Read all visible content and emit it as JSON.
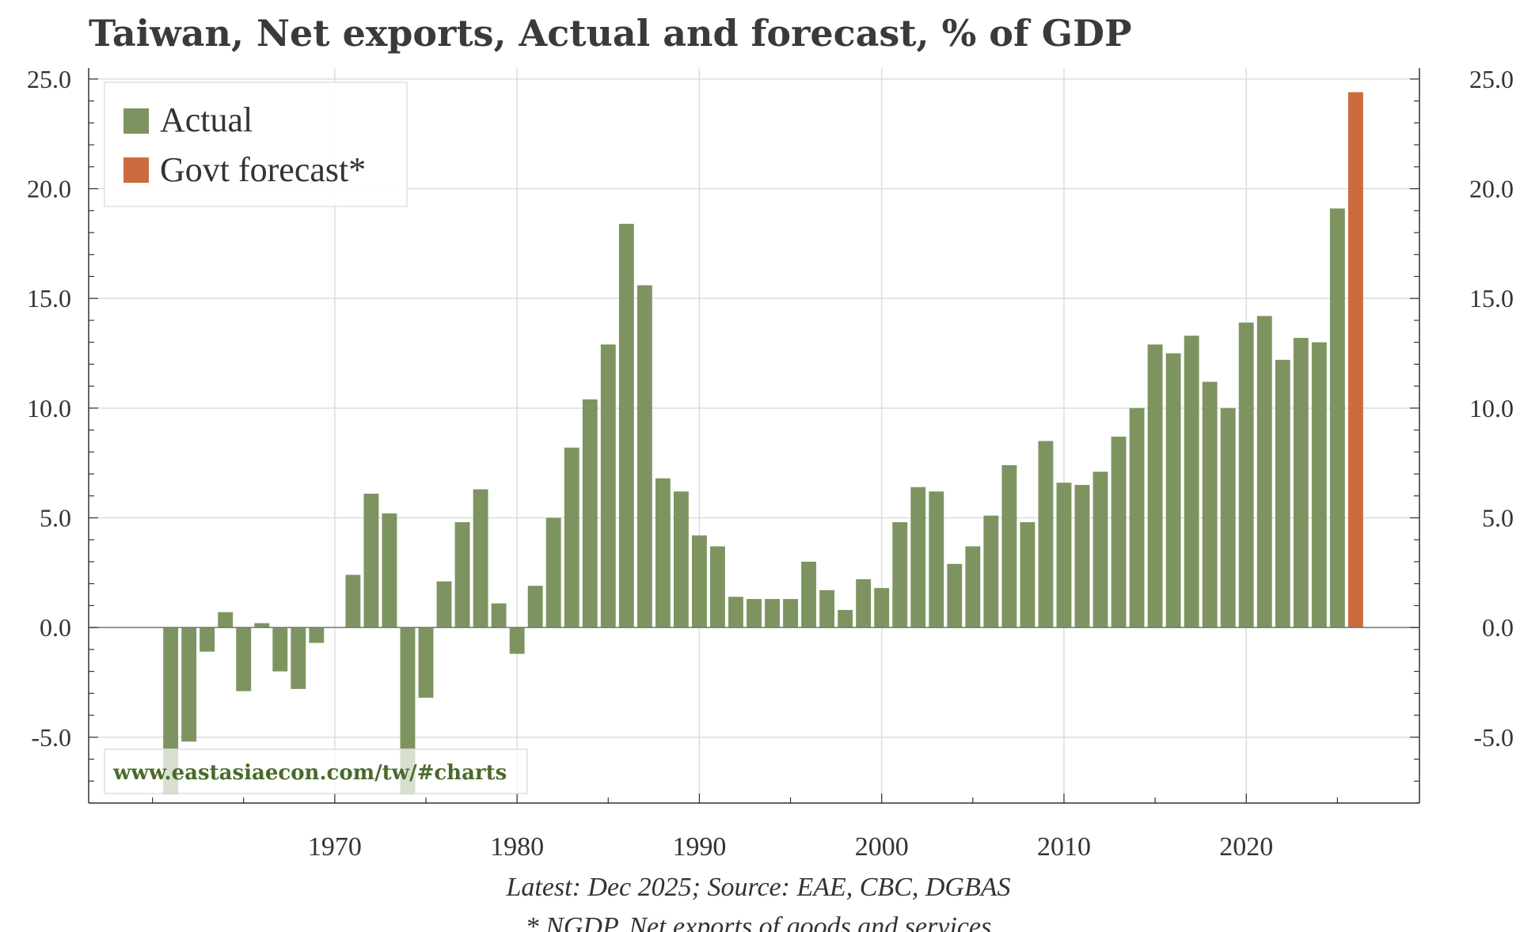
{
  "title": "Taiwan, Net exports, Actual and forecast, % of GDP",
  "footer": {
    "line1": "Latest: Dec 2025; Source: EAE, CBC, DGBAS",
    "line2": "* NGDP, Net exports of goods and services"
  },
  "watermark": "www.eastasiaecon.com/tw/#charts",
  "colors": {
    "actual": "#7d9460",
    "forecast": "#cc6a40",
    "grid": "#dddddd",
    "axis": "#333333",
    "zero_line": "#777777"
  },
  "chart_data": {
    "type": "bar",
    "title": "Taiwan, Net exports, Actual and forecast, % of GDP",
    "xlabel": "",
    "ylabel": "% of GDP",
    "ylim": [
      -8,
      25.5
    ],
    "xlim": [
      1956.5,
      2029.5
    ],
    "x_ticks": [
      1970,
      1980,
      1990,
      2000,
      2010,
      2020
    ],
    "y_ticks": [
      -5,
      0,
      5,
      10,
      15,
      20,
      25
    ],
    "y_tick_labels": [
      "-5.0",
      "0.0",
      "5.0",
      "10.0",
      "15.0",
      "20.0",
      "25.0"
    ],
    "grid": true,
    "legend": "top-left",
    "series": [
      {
        "name": "Actual",
        "x": [
          1961,
          1962,
          1963,
          1964,
          1965,
          1966,
          1967,
          1968,
          1969,
          1970,
          1971,
          1972,
          1973,
          1974,
          1975,
          1976,
          1977,
          1978,
          1979,
          1980,
          1981,
          1982,
          1983,
          1984,
          1985,
          1986,
          1987,
          1988,
          1989,
          1990,
          1991,
          1992,
          1993,
          1994,
          1995,
          1996,
          1997,
          1998,
          1999,
          2000,
          2001,
          2002,
          2003,
          2004,
          2005,
          2006,
          2007,
          2008,
          2009,
          2010,
          2011,
          2012,
          2013,
          2014,
          2015,
          2016,
          2017,
          2018,
          2019,
          2020,
          2021,
          2022,
          2023,
          2024,
          2025
        ],
        "values": [
          -7.6,
          -5.2,
          -1.1,
          0.7,
          -2.9,
          0.2,
          -2.0,
          -2.8,
          -0.7,
          0.0,
          2.4,
          6.1,
          5.2,
          -7.6,
          -3.2,
          2.1,
          4.8,
          6.3,
          1.1,
          -1.2,
          1.9,
          5.0,
          8.2,
          10.4,
          12.9,
          18.4,
          15.6,
          6.8,
          6.2,
          4.2,
          3.7,
          1.4,
          1.3,
          1.3,
          1.3,
          3.0,
          1.7,
          0.8,
          2.2,
          1.8,
          4.8,
          6.4,
          6.2,
          2.9,
          3.7,
          5.1,
          7.4,
          4.8,
          8.5,
          6.6,
          6.5,
          7.1,
          8.7,
          10.0,
          12.9,
          12.5,
          13.3,
          11.2,
          10.0,
          13.9,
          14.2,
          12.2,
          13.2,
          13.0,
          19.1
        ]
      },
      {
        "name": "Govt forecast*",
        "x": [
          2026
        ],
        "values": [
          24.4
        ]
      }
    ]
  }
}
